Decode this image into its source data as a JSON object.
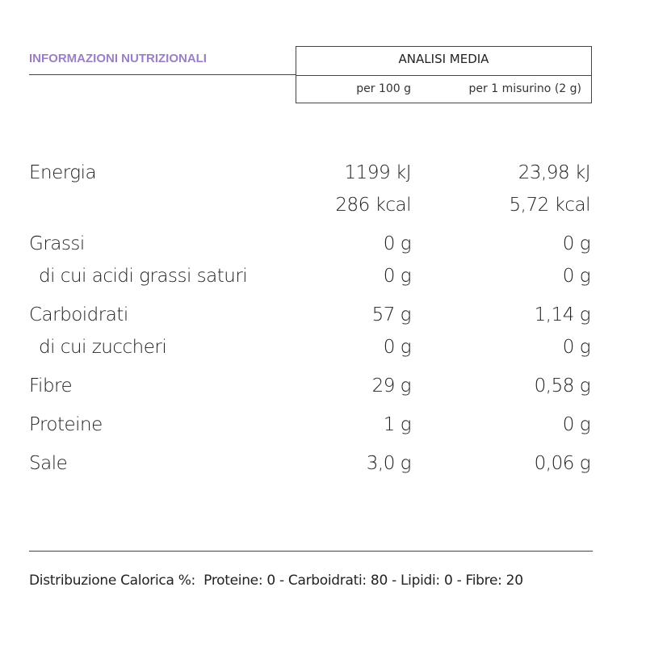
{
  "header": {
    "title": "INFORMAZIONI NUTRIZIONALI"
  },
  "table": {
    "header": {
      "title": "ANALISI MEDIA",
      "columns": [
        "per 100 g",
        "per 1 misurino (2 g)"
      ]
    },
    "groups": [
      {
        "name": "Energia",
        "lines": [
          [
            "1199 kJ",
            "23,98 kJ"
          ],
          [
            "286 kcal",
            "5,72 kcal"
          ]
        ]
      },
      {
        "name": "Grassi",
        "lines": [
          [
            "0 g",
            "0 g"
          ]
        ],
        "sub": [
          {
            "name": "di cui acidi grassi saturi",
            "values": [
              "0 g",
              "0 g"
            ]
          }
        ]
      },
      {
        "name": "Carboidrati",
        "lines": [
          [
            "57 g",
            "1,14 g"
          ]
        ],
        "sub": [
          {
            "name": "di cui zuccheri",
            "values": [
              "0 g",
              "0 g"
            ]
          }
        ]
      },
      {
        "name": "Fibre",
        "lines": [
          [
            "29 g",
            "0,58 g"
          ]
        ]
      },
      {
        "name": "Proteine",
        "lines": [
          [
            "1 g",
            "0 g"
          ]
        ]
      },
      {
        "name": "Sale",
        "lines": [
          [
            "3,0 g",
            "0,06 g"
          ]
        ]
      }
    ]
  },
  "footer": {
    "text": "Distribuzione Calorica %:  Proteine: 0 - Carboidrati: 80 - Lipidi: 0 - Fibre: 20"
  }
}
